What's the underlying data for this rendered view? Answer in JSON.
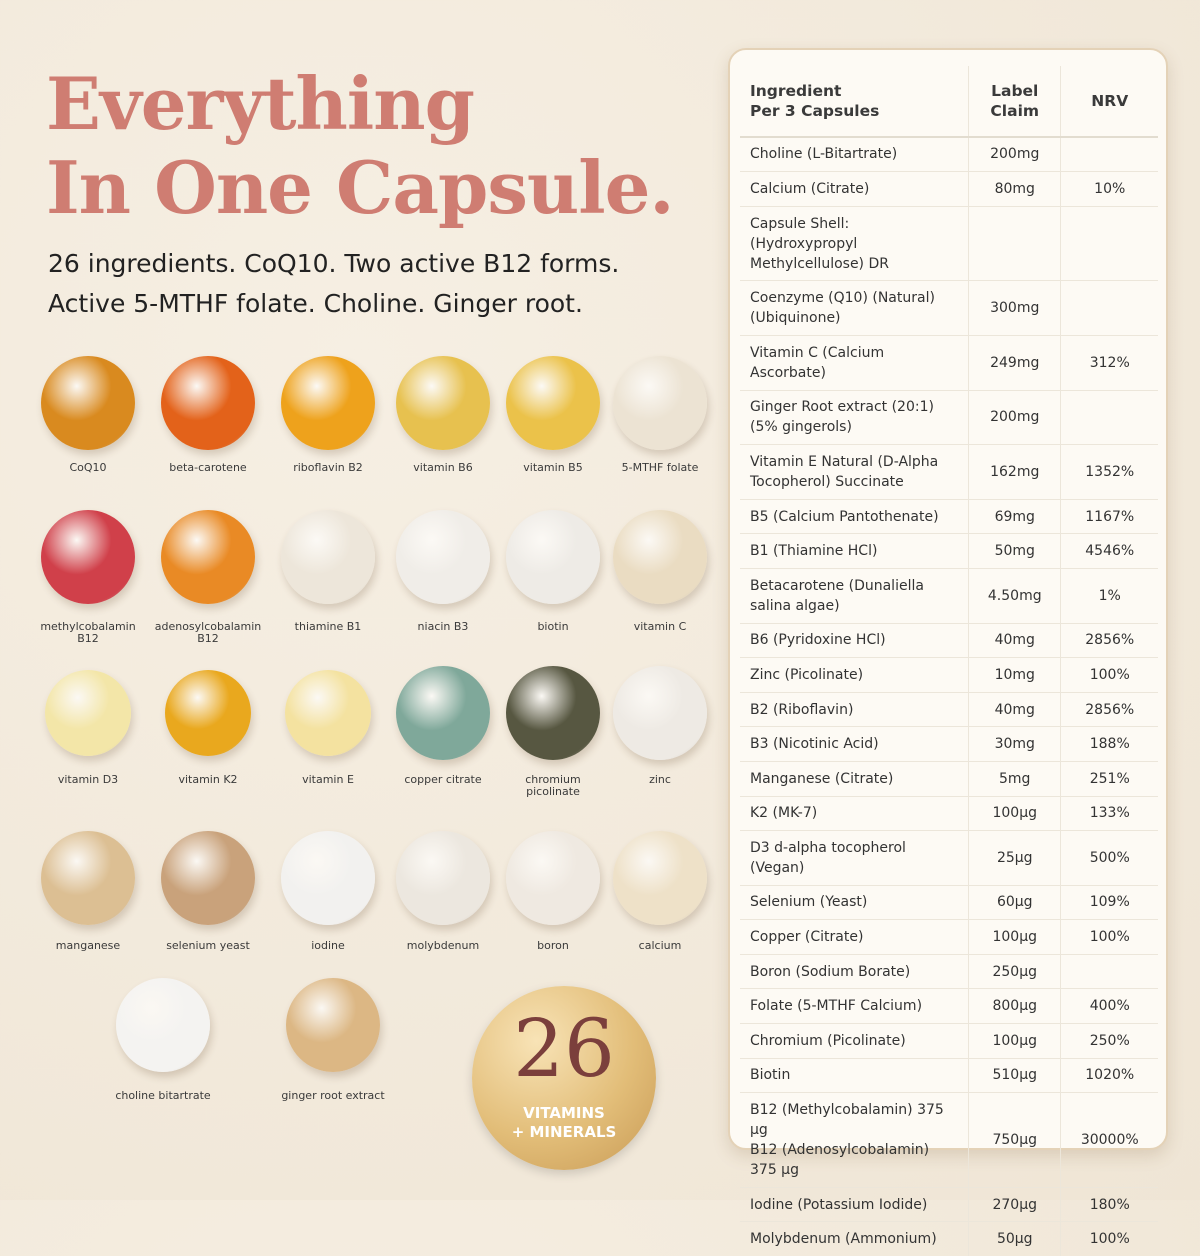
{
  "headline": "Everything\nIn One Capsule.",
  "subtitle": [
    "26 ingredients. CoQ10. Two active B12 forms.",
    "Active 5-MTHF folate. Choline. Ginger root."
  ],
  "ingredients": [
    "CoQ10",
    "beta-carotene",
    "riboflavin B2",
    "vitamin B6",
    "vitamin B5",
    "5-MTHF folate",
    "methylcobalamin\nB12",
    "adenosylcobalamin\nB12",
    "thiamine B1",
    "niacin B3",
    "biotin",
    "vitamin C",
    "vitamin D3",
    "vitamin K2",
    "vitamin E",
    "copper citrate",
    "chromium\npicolinate",
    "zinc",
    "manganese",
    "selenium yeast",
    "iodine",
    "molybdenum",
    "boron",
    "calcium",
    "choline bitartrate",
    "ginger root extract"
  ],
  "badge": {
    "number": "26",
    "label": "VITAMINS\n+ MINERALS"
  },
  "table": {
    "header": [
      "Ingredient\nPer 3 Capsules",
      "Label\nClaim",
      "NRV"
    ],
    "rows": [
      [
        "Choline (L-Bitartrate)",
        "200mg",
        null
      ],
      [
        "Calcium (Citrate)",
        "80mg",
        "10%"
      ],
      [
        "Capsule Shell: (Hydroxypropyl Methylcellulose) DR",
        null,
        null
      ],
      [
        "Coenzyme (Q10) (Natural) (Ubiquinone)",
        "300mg",
        null
      ],
      [
        "Vitamin C (Calcium Ascorbate)",
        "249mg",
        "312%"
      ],
      [
        "Ginger Root extract (20:1) (5% gingerols)",
        "200mg",
        null
      ],
      [
        "Vitamin E Natural (D-Alpha Tocopherol) Succinate",
        "162mg",
        "1352%"
      ],
      [
        "B5 (Calcium Pantothenate)",
        "69mg",
        "1167%"
      ],
      [
        "B1 (Thiamine HCl)",
        "50mg",
        "4546%"
      ],
      [
        "Betacarotene (Dunaliella salina algae)",
        "4.50mg",
        "1%"
      ],
      [
        "B6 (Pyridoxine HCl)",
        "40mg",
        "2856%"
      ],
      [
        "Zinc (Picolinate)",
        "10mg",
        "100%"
      ],
      [
        "B2 (Riboflavin)",
        "40mg",
        "2856%"
      ],
      [
        "B3 (Nicotinic Acid)",
        "30mg",
        "188%"
      ],
      [
        "Manganese (Citrate)",
        "5mg",
        "251%"
      ],
      [
        "K2 (MK-7)",
        "100µg",
        "133%"
      ],
      [
        "D3 d-alpha tocopherol (Vegan)",
        "25µg",
        "500%"
      ],
      [
        "Selenium (Yeast)",
        "60µg",
        "109%"
      ],
      [
        "Copper (Citrate)",
        "100µg",
        "100%"
      ],
      [
        "Boron (Sodium Borate)",
        "250µg",
        null
      ],
      [
        "Folate (5-MTHF Calcium)",
        "800µg",
        "400%"
      ],
      [
        "Chromium (Picolinate)",
        "100µg",
        "250%"
      ],
      [
        "Biotin",
        "510µg",
        "1020%"
      ],
      [
        "B12 (Methylcobalamin) 375 µg\nB12 (Adenosylcobalamin) 375 µg",
        "750µg",
        "30000%"
      ],
      [
        "Iodine (Potassium Iodide)",
        "270µg",
        "180%"
      ],
      [
        "Molybdenum (Ammonium)",
        "50µg",
        "100%"
      ]
    ]
  }
}
